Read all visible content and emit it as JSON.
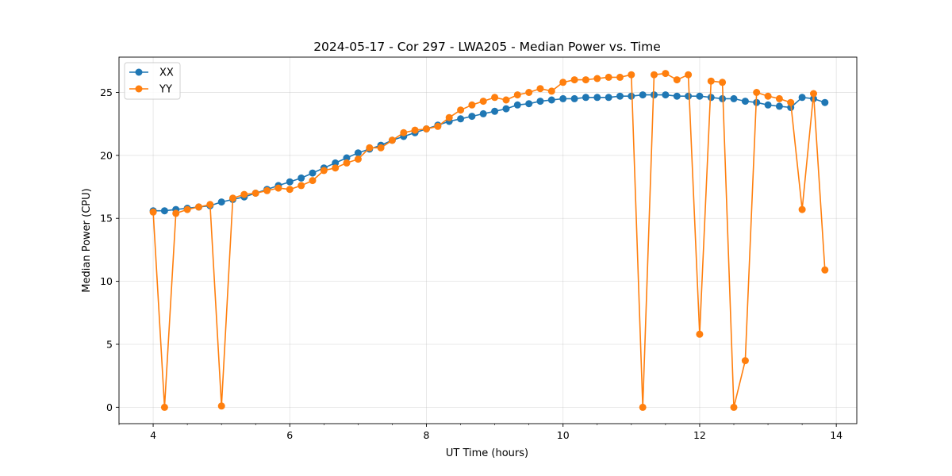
{
  "chart_data": {
    "type": "line",
    "title": "2024-05-17 - Cor 297 - LWA205 - Median Power vs. Time",
    "xlabel": "UT Time (hours)",
    "ylabel": "Median Power (CPU)",
    "xlim": [
      3.5,
      14.3
    ],
    "ylim": [
      -1.3,
      27.8
    ],
    "xticks": [
      4,
      6,
      8,
      10,
      12,
      14
    ],
    "yticks": [
      0,
      5,
      10,
      15,
      20,
      25
    ],
    "grid": true,
    "legend_position": "upper-left",
    "x": [
      4.0,
      4.167,
      4.333,
      4.5,
      4.667,
      4.833,
      5.0,
      5.167,
      5.333,
      5.5,
      5.667,
      5.833,
      6.0,
      6.167,
      6.333,
      6.5,
      6.667,
      6.833,
      7.0,
      7.167,
      7.333,
      7.5,
      7.667,
      7.833,
      8.0,
      8.167,
      8.333,
      8.5,
      8.667,
      8.833,
      9.0,
      9.167,
      9.333,
      9.5,
      9.667,
      9.833,
      10.0,
      10.167,
      10.333,
      10.5,
      10.667,
      10.833,
      11.0,
      11.167,
      11.333,
      11.5,
      11.667,
      11.833,
      12.0,
      12.167,
      12.333,
      12.5,
      12.667,
      12.833,
      13.0,
      13.167,
      13.333,
      13.5,
      13.667,
      13.833
    ],
    "series": [
      {
        "name": "XX",
        "color": "#1f77b4",
        "values": [
          15.6,
          15.6,
          15.7,
          15.8,
          15.9,
          16.0,
          16.3,
          16.5,
          16.7,
          17.0,
          17.3,
          17.6,
          17.9,
          18.2,
          18.6,
          19.0,
          19.4,
          19.8,
          20.2,
          20.5,
          20.8,
          21.2,
          21.5,
          21.8,
          22.1,
          22.4,
          22.7,
          22.9,
          23.1,
          23.3,
          23.5,
          23.7,
          24.0,
          24.1,
          24.3,
          24.4,
          24.5,
          24.5,
          24.6,
          24.6,
          24.6,
          24.7,
          24.7,
          24.8,
          24.8,
          24.8,
          24.7,
          24.7,
          24.7,
          24.6,
          24.5,
          24.5,
          24.3,
          24.2,
          24.0,
          23.9,
          23.8,
          24.6,
          24.5,
          24.2
        ]
      },
      {
        "name": "YY",
        "color": "#ff7f0e",
        "values": [
          15.5,
          0.0,
          15.4,
          15.7,
          15.9,
          16.1,
          0.1,
          16.6,
          16.9,
          17.0,
          17.2,
          17.4,
          17.3,
          17.6,
          18.0,
          18.8,
          19.0,
          19.4,
          19.7,
          20.6,
          20.6,
          21.2,
          21.8,
          22.0,
          22.1,
          22.3,
          23.0,
          23.6,
          24.0,
          24.3,
          24.6,
          24.4,
          24.8,
          25.0,
          25.3,
          25.1,
          25.8,
          26.0,
          26.0,
          26.1,
          26.2,
          26.2,
          26.4,
          0.0,
          26.4,
          26.5,
          26.0,
          26.4,
          5.8,
          25.9,
          25.8,
          0.0,
          3.7,
          25.0,
          24.7,
          24.5,
          24.2,
          15.7,
          24.9,
          10.9
        ]
      }
    ]
  }
}
